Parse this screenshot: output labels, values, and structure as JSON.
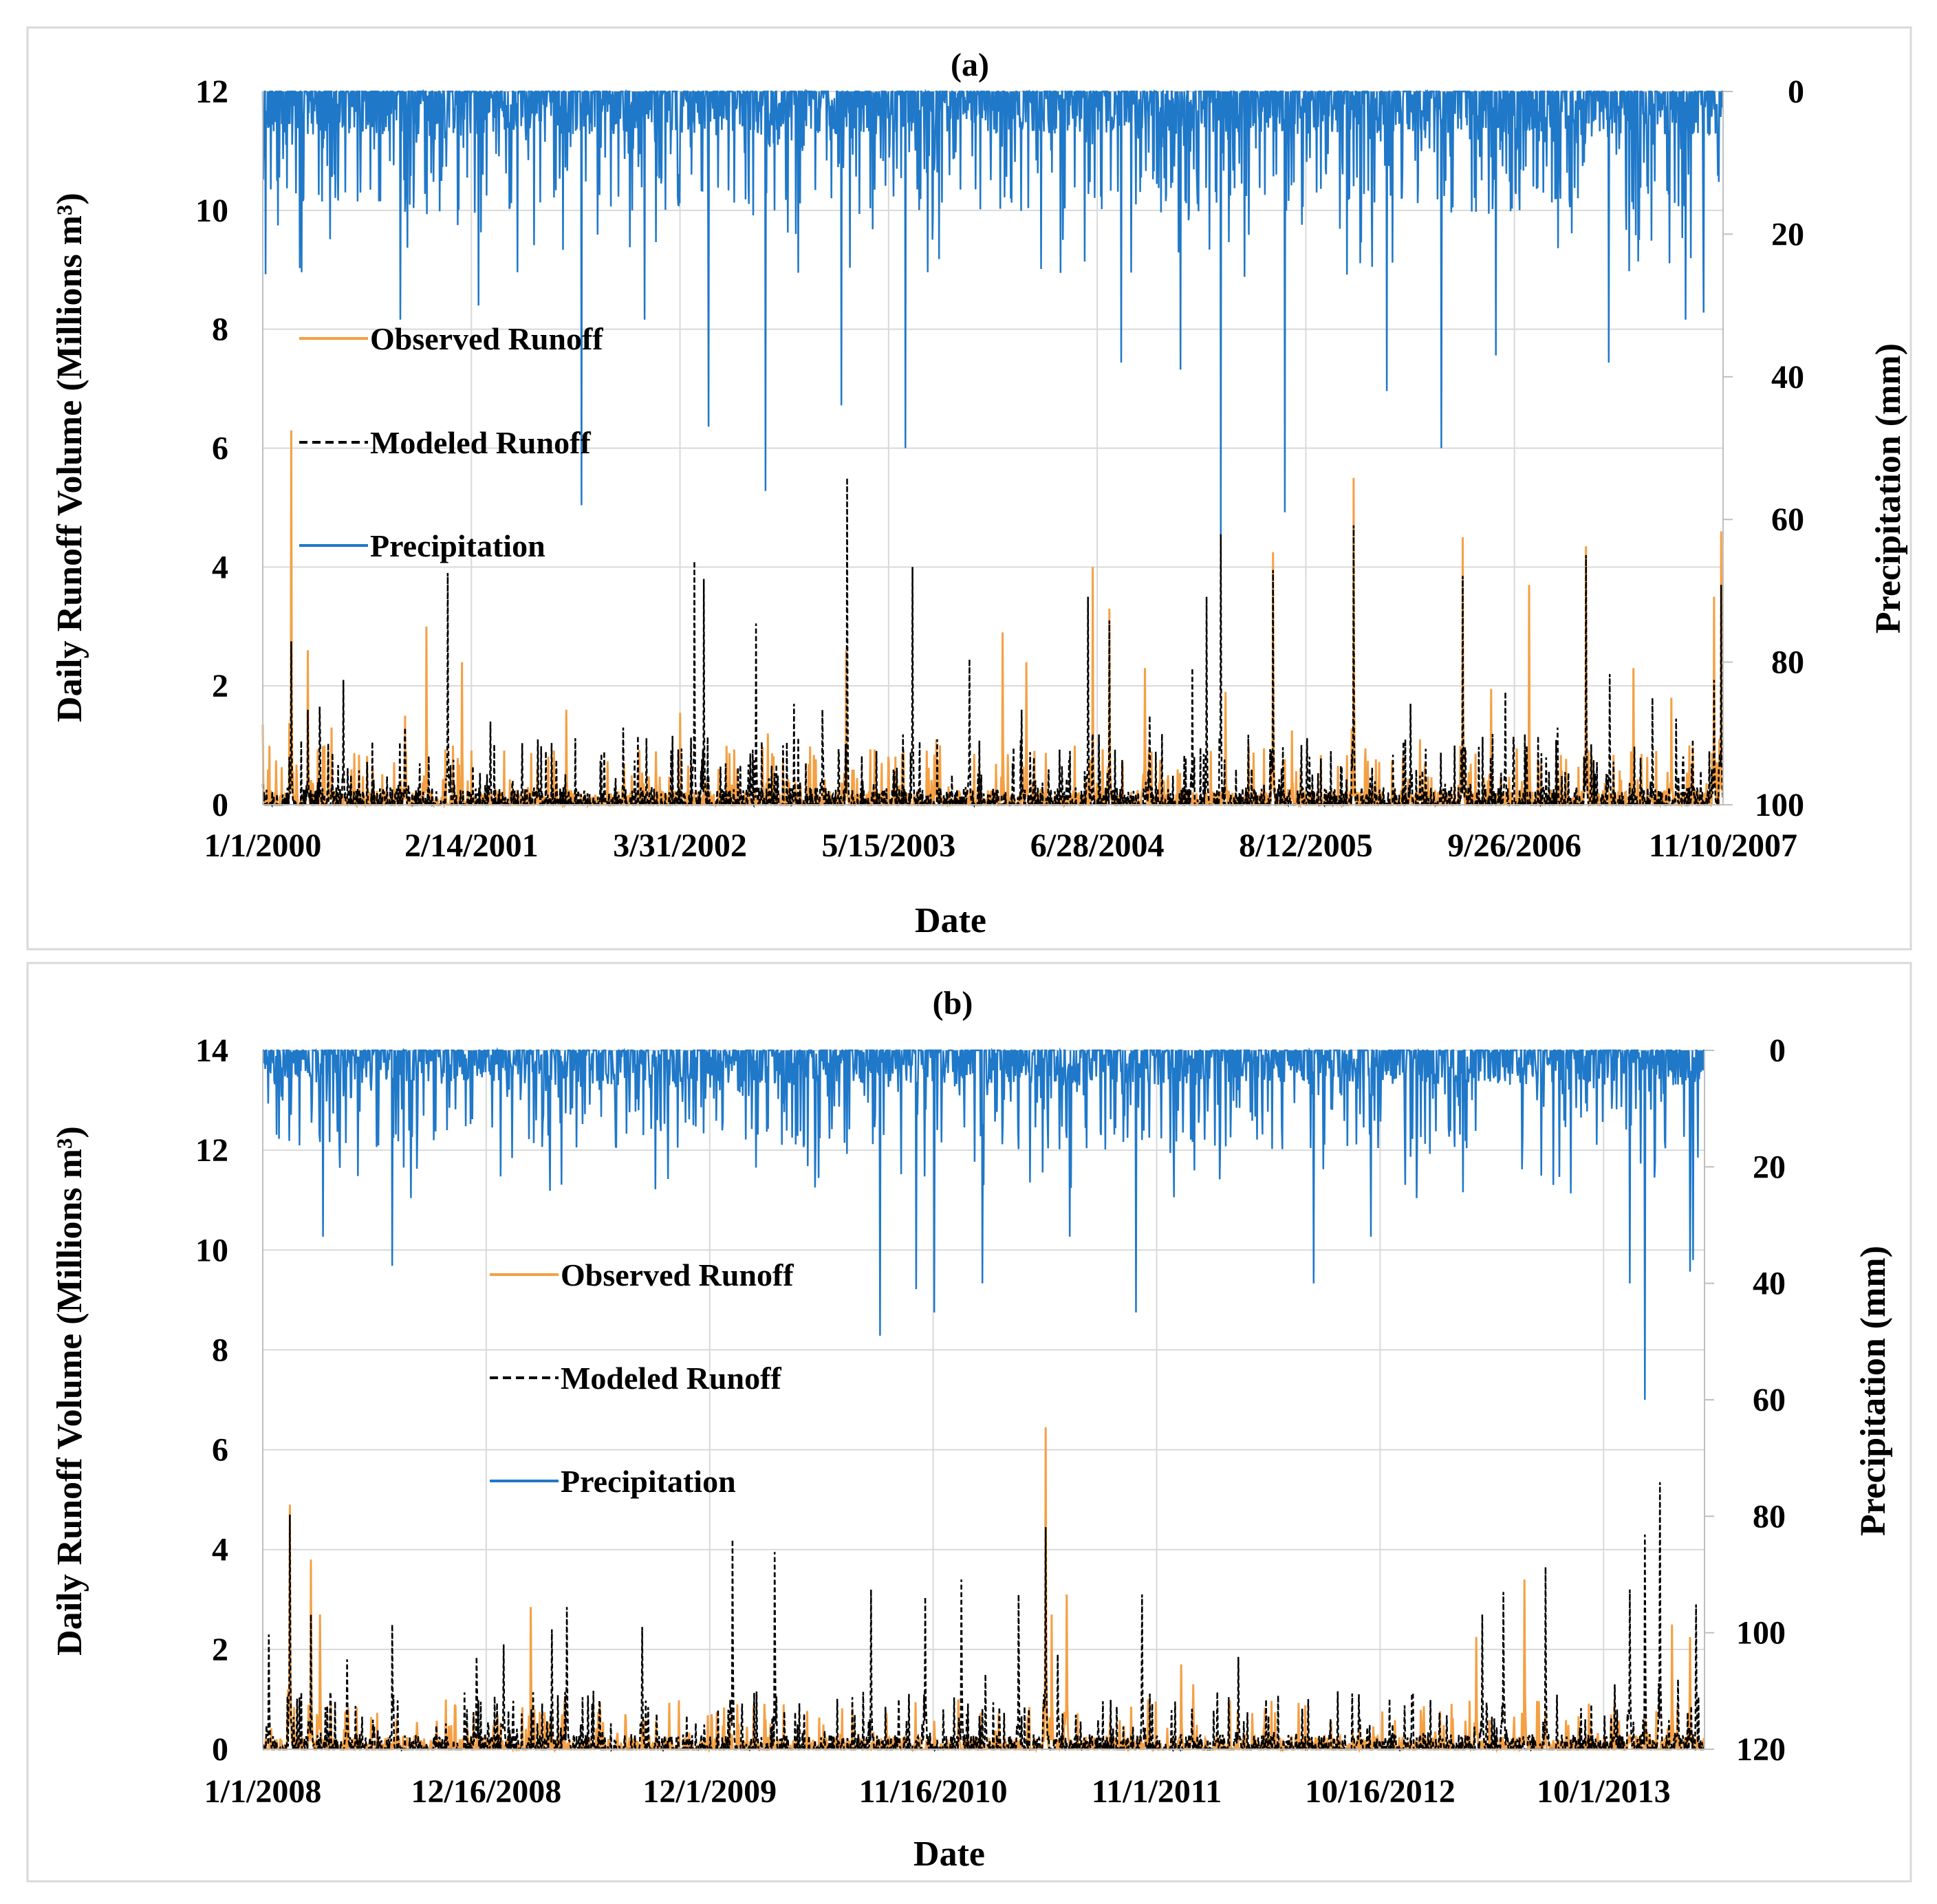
{
  "figure": {
    "background": "#ffffff",
    "border_color": "#d9d9d9"
  },
  "chart_data": [
    {
      "type": "line",
      "title": "(a)",
      "xlabel": "Date",
      "ylabel": "Daily Runoff Volume (Millions m³)",
      "y2label": "Precipitation (mm)",
      "ylim": [
        0,
        12
      ],
      "yticks": [
        "0",
        "2",
        "4",
        "6",
        "8",
        "10",
        "12"
      ],
      "y2lim": [
        0,
        100
      ],
      "y2_inverted": true,
      "y2ticks": [
        "0",
        "20",
        "40",
        "60",
        "80",
        "100"
      ],
      "x_tick_labels": [
        "1/1/2000",
        "2/14/2001",
        "3/31/2002",
        "5/15/2003",
        "6/28/2004",
        "8/12/2005",
        "9/26/2006",
        "11/10/2007"
      ],
      "x_range_days": [
        0,
        3080
      ],
      "legend": [
        {
          "name": "Observed Runoff",
          "color": "#f4a044",
          "style": "solid"
        },
        {
          "name": "Modeled Runoff",
          "color": "#000000",
          "style": "dashed"
        },
        {
          "name": "Precipitation",
          "color": "#1f78c8",
          "style": "solid"
        }
      ],
      "legend_position": "middle-left",
      "grid": true,
      "n_days": 3080,
      "observed_peaks": [
        [
          0,
          1.35
        ],
        [
          60,
          6.3
        ],
        [
          95,
          2.6
        ],
        [
          145,
          1.3
        ],
        [
          300,
          1.5
        ],
        [
          345,
          3.0
        ],
        [
          420,
          2.4
        ],
        [
          640,
          1.6
        ],
        [
          880,
          1.55
        ],
        [
          1065,
          1.2
        ],
        [
          1230,
          2.6
        ],
        [
          1420,
          1.1
        ],
        [
          1560,
          2.9
        ],
        [
          1610,
          2.4
        ],
        [
          1750,
          4.0
        ],
        [
          1785,
          3.3
        ],
        [
          1860,
          2.3
        ],
        [
          2030,
          1.9
        ],
        [
          2130,
          4.25
        ],
        [
          2170,
          1.25
        ],
        [
          2300,
          5.5
        ],
        [
          2440,
          1.1
        ],
        [
          2530,
          4.5
        ],
        [
          2590,
          1.95
        ],
        [
          2670,
          3.7
        ],
        [
          2790,
          4.35
        ],
        [
          2970,
          1.8
        ],
        [
          3060,
          3.5
        ],
        [
          3075,
          4.6
        ],
        [
          2890,
          2.3
        ],
        [
          2790,
          2.0
        ]
      ],
      "modeled_peaks": [
        [
          0,
          0.35
        ],
        [
          60,
          2.75
        ],
        [
          95,
          1.6
        ],
        [
          120,
          1.65
        ],
        [
          170,
          2.1
        ],
        [
          300,
          1.3
        ],
        [
          390,
          3.9
        ],
        [
          480,
          1.4
        ],
        [
          580,
          1.1
        ],
        [
          720,
          0.9
        ],
        [
          760,
          1.3
        ],
        [
          910,
          4.1
        ],
        [
          930,
          3.8
        ],
        [
          1040,
          3.05
        ],
        [
          1120,
          1.7
        ],
        [
          1180,
          1.6
        ],
        [
          1232,
          5.5
        ],
        [
          1370,
          4.0
        ],
        [
          1490,
          2.45
        ],
        [
          1600,
          1.6
        ],
        [
          1740,
          3.5
        ],
        [
          1785,
          3.1
        ],
        [
          1870,
          1.5
        ],
        [
          1960,
          2.3
        ],
        [
          1990,
          3.5
        ],
        [
          2020,
          4.55
        ],
        [
          2130,
          3.95
        ],
        [
          2300,
          4.7
        ],
        [
          2420,
          1.7
        ],
        [
          2530,
          3.85
        ],
        [
          2620,
          1.9
        ],
        [
          2730,
          1.3
        ],
        [
          2790,
          4.2
        ],
        [
          2840,
          2.2
        ],
        [
          2930,
          1.8
        ],
        [
          2980,
          1.45
        ],
        [
          3060,
          2.1
        ],
        [
          3075,
          3.7
        ],
        [
          3015,
          1.1
        ],
        [
          3050,
          0.9
        ]
      ],
      "precip_extremes": [
        [
          672,
          58
        ],
        [
          1220,
          44
        ],
        [
          1355,
          50
        ],
        [
          1810,
          38
        ],
        [
          1935,
          39
        ],
        [
          2020,
          63
        ],
        [
          2155,
          59
        ],
        [
          2370,
          42
        ],
        [
          2485,
          50
        ],
        [
          2600,
          37
        ],
        [
          2838,
          38
        ],
        [
          3000,
          32
        ],
        [
          3038,
          31
        ],
        [
          940,
          47
        ],
        [
          1060,
          56
        ],
        [
          805,
          32
        ],
        [
          455,
          30
        ],
        [
          290,
          32
        ]
      ]
    },
    {
      "type": "line",
      "title": "(b)",
      "xlabel": "Date",
      "ylabel": "Daily Runoff Volume (Millions m³)",
      "y2label": "Precipitation (mm)",
      "ylim": [
        0,
        14
      ],
      "yticks": [
        "0",
        "2",
        "4",
        "6",
        "8",
        "10",
        "12",
        "14"
      ],
      "y2lim": [
        0,
        120
      ],
      "y2_inverted": true,
      "y2ticks": [
        "0",
        "20",
        "40",
        "60",
        "80",
        "100",
        "120"
      ],
      "x_tick_labels": [
        "1/1/2008",
        "12/16/2008",
        "12/1/2009",
        "11/16/2010",
        "11/1/2011",
        "10/16/2012",
        "10/1/2013"
      ],
      "x_range_days": [
        0,
        2395
      ],
      "legend": [
        {
          "name": "Observed Runoff",
          "color": "#f4a044",
          "style": "solid"
        },
        {
          "name": "Modeled Runoff",
          "color": "#000000",
          "style": "dashed"
        },
        {
          "name": "Precipitation",
          "color": "#1f78c8",
          "style": "solid"
        }
      ],
      "legend_position": "middle-left",
      "grid": true,
      "n_days": 2395,
      "observed_peaks": [
        [
          45,
          4.9
        ],
        [
          80,
          3.8
        ],
        [
          95,
          2.7
        ],
        [
          445,
          2.85
        ],
        [
          1155,
          1.0
        ],
        [
          1300,
          6.45
        ],
        [
          1335,
          3.1
        ],
        [
          1525,
          1.7
        ],
        [
          2015,
          2.25
        ],
        [
          2095,
          3.4
        ],
        [
          2340,
          2.5
        ],
        [
          2370,
          2.25
        ],
        [
          1310,
          2.7
        ],
        [
          1545,
          1.3
        ],
        [
          1470,
          1.0
        ]
      ],
      "modeled_peaks": [
        [
          10,
          2.3
        ],
        [
          45,
          4.7
        ],
        [
          80,
          2.7
        ],
        [
          140,
          1.8
        ],
        [
          215,
          2.5
        ],
        [
          355,
          1.85
        ],
        [
          400,
          2.1
        ],
        [
          480,
          2.4
        ],
        [
          505,
          2.85
        ],
        [
          630,
          2.45
        ],
        [
          780,
          4.2
        ],
        [
          850,
          3.95
        ],
        [
          1010,
          3.2
        ],
        [
          1100,
          3.05
        ],
        [
          1160,
          3.4
        ],
        [
          1255,
          3.1
        ],
        [
          1300,
          4.45
        ],
        [
          1320,
          1.9
        ],
        [
          1460,
          3.1
        ],
        [
          1620,
          1.85
        ],
        [
          1820,
          1.1
        ],
        [
          2025,
          2.7
        ],
        [
          2060,
          3.15
        ],
        [
          2130,
          3.65
        ],
        [
          2270,
          3.2
        ],
        [
          2295,
          4.3
        ],
        [
          2320,
          5.35
        ],
        [
          2380,
          2.9
        ],
        [
          2350,
          1.4
        ],
        [
          2245,
          1.3
        ],
        [
          1200,
          1.5
        ]
      ],
      "precip_extremes": [
        [
          215,
          37
        ],
        [
          1025,
          49
        ],
        [
          1085,
          41
        ],
        [
          1115,
          45
        ],
        [
          1195,
          40
        ],
        [
          1450,
          45
        ],
        [
          1745,
          40
        ],
        [
          2270,
          40
        ],
        [
          2295,
          60
        ],
        [
          2370,
          38
        ],
        [
          100,
          32
        ],
        [
          1340,
          32
        ],
        [
          1840,
          32
        ],
        [
          2375,
          36
        ]
      ]
    }
  ]
}
